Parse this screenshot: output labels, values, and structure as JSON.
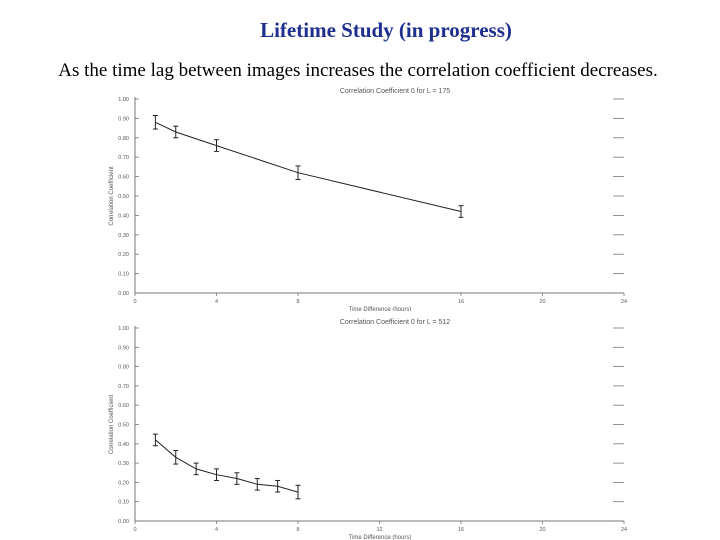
{
  "slide": {
    "title": "Lifetime Study (in progress)",
    "subtitle": "As the time lag between images increases the correlation coefficient decreases."
  },
  "chart_data": [
    {
      "type": "line",
      "title": "Correlation Coefficient 0 for L = 175",
      "xlabel": "Time Difference (hours)",
      "ylabel": "Correlation Coefficient",
      "xlim": [
        0,
        24
      ],
      "ylim": [
        0,
        1
      ],
      "xticks": [
        0,
        4,
        8,
        16,
        20,
        24
      ],
      "xtick_labels": [
        "0",
        "4",
        "8",
        "16",
        "20",
        "24"
      ],
      "yticks": [
        0,
        0.1,
        0.2,
        0.3,
        0.4,
        0.5,
        0.6,
        0.7,
        0.8,
        0.9,
        1
      ],
      "ytick_labels": [
        "0.00",
        "0.10",
        "0.20",
        "0.30",
        "0.40",
        "0.50",
        "0.60",
        "0.70",
        "0.80",
        "0.90",
        "1.00"
      ],
      "grid": "right-edge tick marks",
      "series": [
        {
          "name": "correlation",
          "x": [
            1,
            2,
            4,
            8,
            16
          ],
          "y": [
            0.88,
            0.83,
            0.76,
            0.62,
            0.42
          ],
          "err": [
            0.035,
            0.03,
            0.03,
            0.035,
            0.03
          ]
        }
      ],
      "colors": {
        "line": "#222222",
        "axis": "#777777",
        "text": "#555555"
      }
    },
    {
      "type": "line",
      "title": "Correlation Coefficient 0 for L = 512",
      "xlabel": "Time Difference (hours)",
      "ylabel": "Correlation Coefficient",
      "xlim": [
        0,
        24
      ],
      "ylim": [
        0,
        1
      ],
      "xticks": [
        0,
        4,
        8,
        12,
        16,
        20,
        24
      ],
      "xtick_labels": [
        "0",
        "4",
        "8",
        "12",
        "16",
        "20",
        "24"
      ],
      "yticks": [
        0,
        0.1,
        0.2,
        0.3,
        0.4,
        0.5,
        0.6,
        0.7,
        0.8,
        0.9,
        1
      ],
      "ytick_labels": [
        "0.00",
        "0.10",
        "0.20",
        "0.30",
        "0.40",
        "0.50",
        "0.60",
        "0.70",
        "0.80",
        "0.90",
        "1.00"
      ],
      "grid": "right-edge tick marks",
      "series": [
        {
          "name": "correlation",
          "x": [
            1,
            2,
            3,
            4,
            5,
            6,
            7,
            8
          ],
          "y": [
            0.42,
            0.33,
            0.27,
            0.24,
            0.22,
            0.19,
            0.18,
            0.15
          ],
          "err": [
            0.03,
            0.035,
            0.03,
            0.03,
            0.03,
            0.03,
            0.03,
            0.035
          ]
        }
      ],
      "colors": {
        "line": "#222222",
        "axis": "#777777",
        "text": "#555555"
      }
    }
  ]
}
